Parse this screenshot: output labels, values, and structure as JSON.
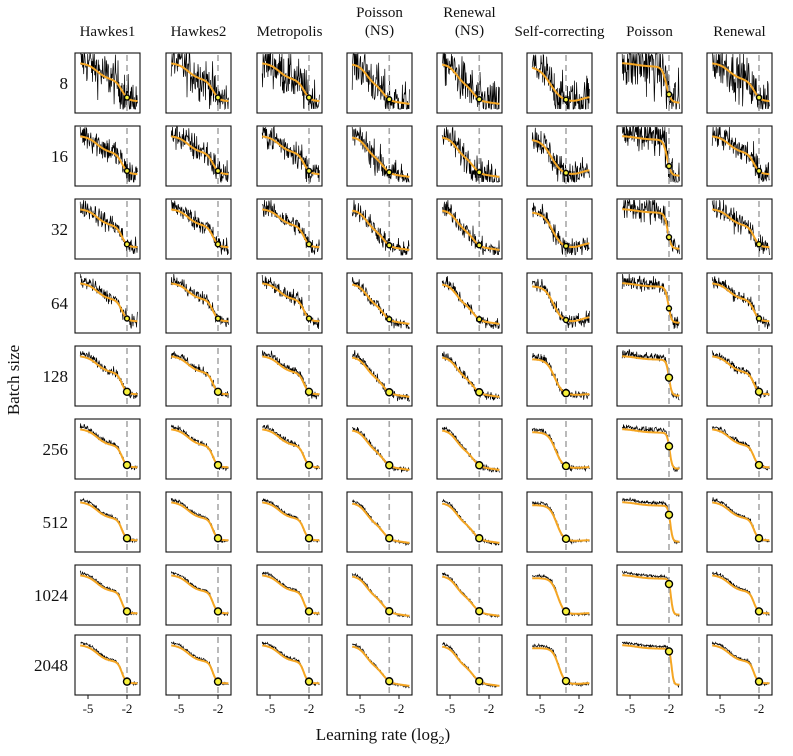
{
  "chart_data": {
    "type": "line",
    "description_grid": "9 rows x 8 columns of small-multiple loss curves",
    "columns": [
      {
        "title": [
          "Hawkes1"
        ],
        "vline": -2
      },
      {
        "title": [
          "Hawkes2"
        ],
        "vline": -2
      },
      {
        "title": [
          "Metropolis"
        ],
        "vline": -2
      },
      {
        "title": [
          "Poisson",
          "(NS)"
        ],
        "vline": -2.75
      },
      {
        "title": [
          "Renewal",
          "(NS)"
        ],
        "vline": -2.75
      },
      {
        "title": [
          "Self-correcting"
        ],
        "vline": -3
      },
      {
        "title": [
          "Poisson"
        ],
        "vline": -2
      },
      {
        "title": [
          "Renewal"
        ],
        "vline": -2
      }
    ],
    "rows": [
      "8",
      "16",
      "32",
      "64",
      "128",
      "256",
      "512",
      "1024",
      "2048"
    ],
    "xlabel": "Learning rate (log",
    "xlabel_sub": "2",
    "xlabel_close": ")",
    "ylabel": "Batch size",
    "xlim": [
      -6,
      -1
    ],
    "xticks": [
      -5,
      -2
    ],
    "xtick_labels": [
      "-5",
      "-2"
    ],
    "colors": {
      "noisy": "#000000",
      "smooth": "#f5a623",
      "optimum": "#f7f23a",
      "vline": "#a8a8a8"
    }
  }
}
